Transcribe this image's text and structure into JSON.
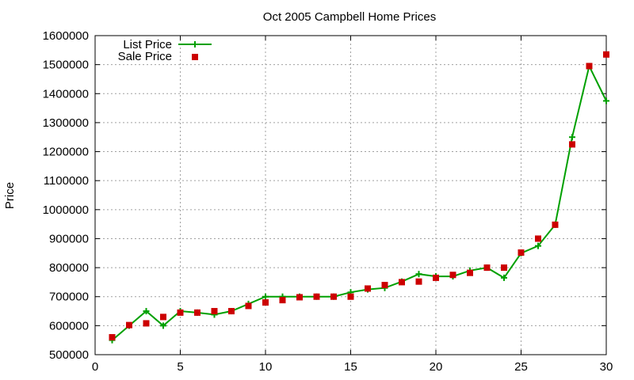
{
  "chart_data": {
    "type": "line",
    "title": "Oct 2005 Campbell Home Prices",
    "xlabel": "",
    "ylabel": "Price",
    "xlim": [
      0,
      30
    ],
    "ylim": [
      500000,
      1600000
    ],
    "xticks": [
      "0",
      "5",
      "10",
      "15",
      "20",
      "25",
      "30"
    ],
    "yticks": [
      "500000",
      "600000",
      "700000",
      "800000",
      "900000",
      "1000000",
      "1100000",
      "1200000",
      "1300000",
      "1400000",
      "1500000",
      "1600000"
    ],
    "grid": true,
    "legend_position": "top-left",
    "x": [
      1,
      2,
      3,
      4,
      5,
      6,
      7,
      8,
      9,
      10,
      11,
      12,
      13,
      14,
      15,
      16,
      17,
      18,
      19,
      20,
      21,
      22,
      23,
      24,
      25,
      26,
      27,
      28,
      29,
      30
    ],
    "series": [
      {
        "name": "List Price",
        "style": "line-with-plus-markers",
        "color": "#00a000",
        "values": [
          550000,
          600000,
          650000,
          600000,
          650000,
          645000,
          638000,
          650000,
          675000,
          700000,
          700000,
          700000,
          700000,
          700000,
          715000,
          725000,
          730000,
          752000,
          778000,
          770000,
          770000,
          790000,
          800000,
          765000,
          850000,
          875000,
          948000,
          1250000,
          1495000,
          1375000
        ]
      },
      {
        "name": "Sale Price",
        "style": "square-markers",
        "color": "#cc0000",
        "values": [
          560000,
          602000,
          608000,
          630000,
          645000,
          645000,
          650000,
          650000,
          668000,
          680000,
          688000,
          698000,
          700000,
          700000,
          700000,
          728000,
          740000,
          750000,
          752000,
          765000,
          775000,
          782000,
          800000,
          800000,
          852000,
          900000,
          948000,
          1225000,
          1495000,
          1535000
        ]
      }
    ]
  }
}
